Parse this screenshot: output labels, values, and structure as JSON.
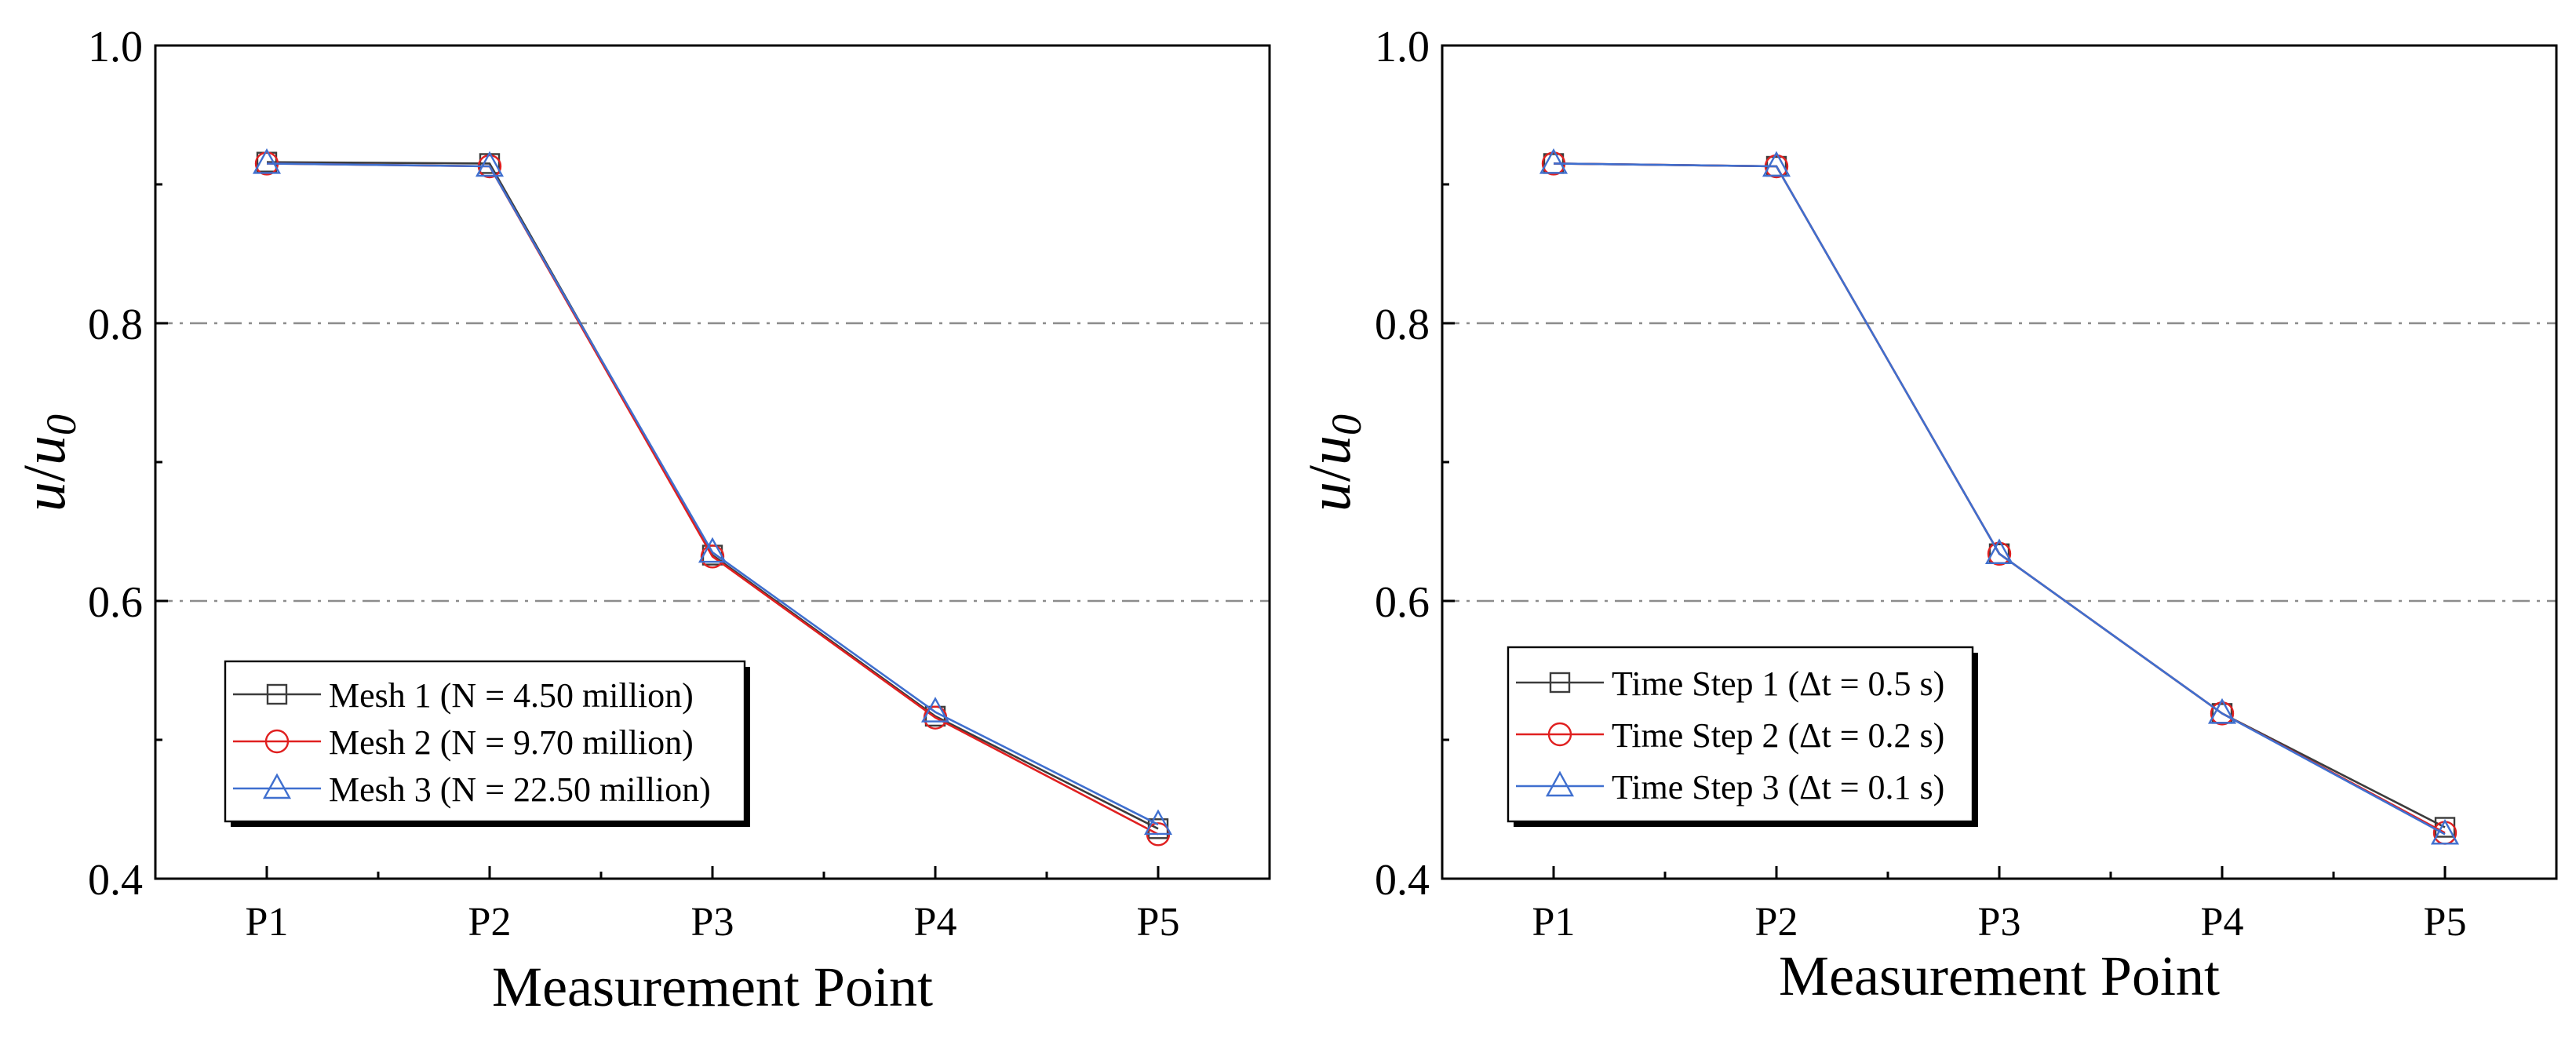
{
  "chart_data": [
    {
      "type": "line",
      "categories": [
        "P1",
        "P2",
        "P3",
        "P4",
        "P5"
      ],
      "xlabel": "Measurement Point",
      "ylabel": {
        "var": "u",
        "sep": "/",
        "base": "u",
        "sub": "0"
      },
      "ylim": [
        0.4,
        1.0
      ],
      "yticks": [
        "0.4",
        "0.6",
        "0.8",
        "1.0"
      ],
      "gridlines_y": [
        0.6,
        0.8
      ],
      "grid_style": "dash-dot",
      "legend_position": "bottom-left",
      "series": [
        {
          "name": "Mesh 1 (N = 4.50 million)",
          "marker": "square",
          "color": "#3c3c3c",
          "values": [
            0.916,
            0.915,
            0.633,
            0.517,
            0.436
          ]
        },
        {
          "name": "Mesh 2 (N = 9.70 million)",
          "marker": "circle",
          "color": "#e02020",
          "values": [
            0.915,
            0.913,
            0.632,
            0.516,
            0.432
          ]
        },
        {
          "name": "Mesh 3 (N = 22.50 million)",
          "marker": "triangle",
          "color": "#3f6fcf",
          "values": [
            0.915,
            0.913,
            0.635,
            0.52,
            0.439
          ]
        }
      ]
    },
    {
      "type": "line",
      "categories": [
        "P1",
        "P2",
        "P3",
        "P4",
        "P5"
      ],
      "xlabel": "Measurement Point",
      "ylabel": {
        "var": "u",
        "sep": "/",
        "base": "u",
        "sub": "0"
      },
      "ylim": [
        0.4,
        1.0
      ],
      "yticks": [
        "0.4",
        "0.6",
        "0.8",
        "1.0"
      ],
      "gridlines_y": [
        0.6,
        0.8
      ],
      "grid_style": "dash-dot",
      "legend_position": "bottom-left",
      "series": [
        {
          "name": "Time Step 1 (Δt = 0.5 s)",
          "marker": "square",
          "color": "#3c3c3c",
          "values": [
            0.915,
            0.913,
            0.634,
            0.519,
            0.437
          ]
        },
        {
          "name": "Time Step 2 (Δt = 0.2 s)",
          "marker": "circle",
          "color": "#e02020",
          "values": [
            0.915,
            0.913,
            0.634,
            0.519,
            0.433
          ]
        },
        {
          "name": "Time Step 3 (Δt = 0.1 s)",
          "marker": "triangle",
          "color": "#3f6fcf",
          "values": [
            0.915,
            0.913,
            0.634,
            0.519,
            0.432
          ]
        }
      ]
    }
  ]
}
